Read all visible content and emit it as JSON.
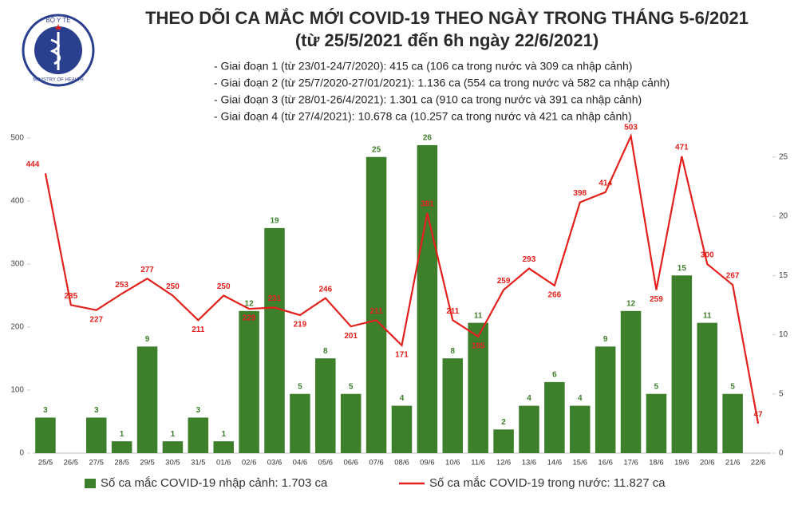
{
  "logo": {
    "top": "BỘ Y TẾ",
    "bottom": "MINISTRY OF HEALTH"
  },
  "chart_data": {
    "type": "bar-line",
    "title": "THEO DÕI CA MẮC MỚI COVID-19 THEO NGÀY TRONG THÁNG 5-6/2021",
    "subtitle": "(từ 25/5/2021 đến 6h ngày 22/6/2021)",
    "notes": [
      "- Giai đoạn 1 (từ 23/01-24/7/2020): 415 ca (106 ca trong nước và 309 ca nhập cảnh)",
      "- Giai đoạn 2 (từ 25/7/2020-27/01/2021): 1.136 ca (554 ca trong nước và 582 ca nhập cảnh)",
      "- Giai đoạn 3 (từ 28/01-26/4/2021): 1.301 ca (910 ca trong nước và 391 ca nhập cảnh)",
      "- Giai đoạn 4 (từ 27/4/2021): 10.678 ca (10.257 ca trong nước và 421 ca nhập cảnh)"
    ],
    "categories": [
      "25/5",
      "26/5",
      "27/5",
      "28/5",
      "29/5",
      "30/5",
      "31/5",
      "01/6",
      "02/6",
      "03/6",
      "04/6",
      "05/6",
      "06/6",
      "07/6",
      "08/6",
      "09/6",
      "10/6",
      "11/6",
      "12/6",
      "13/6",
      "14/6",
      "15/6",
      "16/6",
      "17/6",
      "18/6",
      "19/6",
      "20/6",
      "21/6",
      "22/6"
    ],
    "series": [
      {
        "name": "Số ca mắc COVID-19 nhập cảnh: 1.703 ca",
        "type": "bar",
        "axis": "y2",
        "color": "#3e7f2c",
        "values": [
          3,
          null,
          3,
          1,
          9,
          1,
          3,
          1,
          12,
          19,
          5,
          8,
          5,
          25,
          4,
          26,
          8,
          11,
          2,
          4,
          6,
          4,
          9,
          12,
          5,
          15,
          11,
          5,
          null
        ]
      },
      {
        "name": "Số ca mắc COVID-19 trong nước: 11.827 ca",
        "type": "line",
        "color": "#e3211c",
        "values": [
          444,
          235,
          227,
          253,
          277,
          250,
          211,
          250,
          229,
          231,
          219,
          246,
          201,
          211,
          171,
          381,
          211,
          185,
          259,
          293,
          266,
          398,
          414,
          503,
          259,
          471,
          300,
          267,
          47
        ]
      }
    ],
    "ylim": [
      0,
      500
    ],
    "yticks": [
      0,
      100,
      200,
      300,
      400,
      500
    ],
    "y2lim": [
      0,
      26.6
    ],
    "y2ticks": [
      0,
      5,
      10,
      15,
      20,
      25
    ]
  }
}
